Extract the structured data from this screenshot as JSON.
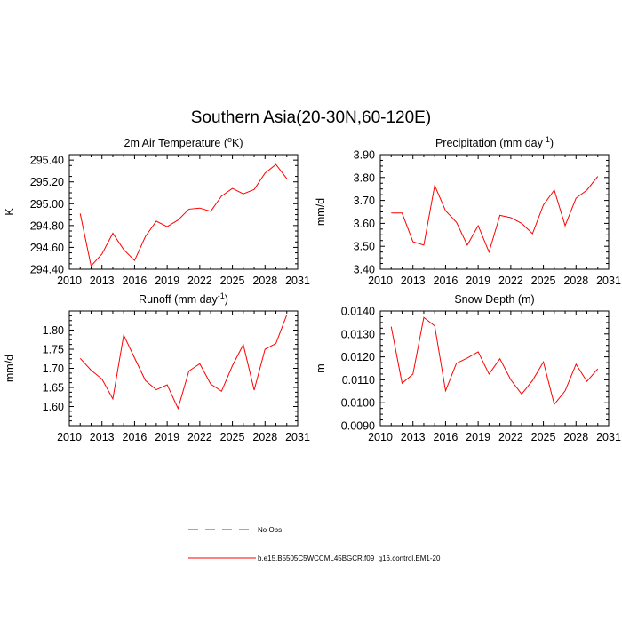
{
  "figure_title": "Southern Asia(20-30N,60-120E)",
  "colors": {
    "model_line": "#ff0000",
    "obs_line": "#3b3bff",
    "axis": "#000000"
  },
  "legend": {
    "obs_label": "No Obs",
    "model_label": "b.e15.B5505C5WCCML45BGCR.f09_g16.control.EM1-20"
  },
  "chart_data": [
    {
      "type": "line",
      "title_main": "2m Air Temperature (",
      "title_sup": "o",
      "title_end": "K)",
      "ylabel": "K",
      "xlim": [
        2010,
        2031
      ],
      "ylim": [
        294.4,
        295.45
      ],
      "xticks": [
        2010,
        2013,
        2016,
        2019,
        2022,
        2025,
        2028,
        2031
      ],
      "yticks": [
        294.4,
        294.6,
        294.8,
        295.0,
        295.2,
        295.4
      ],
      "ytick_labels": [
        "294.40",
        "294.60",
        "294.80",
        "295.00",
        "295.20",
        "295.40"
      ],
      "x": [
        2011,
        2012,
        2013,
        2014,
        2015,
        2016,
        2017,
        2018,
        2019,
        2020,
        2021,
        2022,
        2023,
        2024,
        2025,
        2026,
        2027,
        2028,
        2029,
        2030
      ],
      "series": [
        {
          "name": "b.e15.B5505C5WCCML45BGCR.f09_g16.control.EM1-20",
          "values": [
            294.91,
            294.43,
            294.54,
            294.73,
            294.58,
            294.48,
            294.7,
            294.84,
            294.79,
            294.85,
            294.95,
            294.96,
            294.93,
            295.07,
            295.14,
            295.09,
            295.13,
            295.28,
            295.36,
            295.23
          ]
        }
      ]
    },
    {
      "type": "line",
      "title_main": "Precipitation (mm day",
      "title_sup": "-1",
      "title_end": ")",
      "ylabel": "mm/d",
      "xlim": [
        2010,
        2031
      ],
      "ylim": [
        3.4,
        3.9
      ],
      "xticks": [
        2010,
        2013,
        2016,
        2019,
        2022,
        2025,
        2028,
        2031
      ],
      "yticks": [
        3.4,
        3.5,
        3.6,
        3.7,
        3.8,
        3.9
      ],
      "ytick_labels": [
        "3.40",
        "3.50",
        "3.60",
        "3.70",
        "3.80",
        "3.90"
      ],
      "x": [
        2011,
        2012,
        2013,
        2014,
        2015,
        2016,
        2017,
        2018,
        2019,
        2020,
        2021,
        2022,
        2023,
        2024,
        2025,
        2026,
        2027,
        2028,
        2029,
        2030
      ],
      "series": [
        {
          "name": "b.e15.B5505C5WCCML45BGCR.f09_g16.control.EM1-20",
          "values": [
            3.645,
            3.645,
            3.52,
            3.505,
            3.765,
            3.655,
            3.605,
            3.505,
            3.59,
            3.475,
            3.635,
            3.625,
            3.6,
            3.555,
            3.68,
            3.745,
            3.59,
            3.71,
            3.745,
            3.805
          ]
        }
      ]
    },
    {
      "type": "line",
      "title_main": "Runoff (mm day",
      "title_sup": "-1",
      "title_end": ")",
      "ylabel": "mm/d",
      "xlim": [
        2010,
        2031
      ],
      "ylim": [
        1.55,
        1.85
      ],
      "xticks": [
        2010,
        2013,
        2016,
        2019,
        2022,
        2025,
        2028,
        2031
      ],
      "yticks": [
        1.6,
        1.65,
        1.7,
        1.75,
        1.8
      ],
      "ytick_labels": [
        "1.60",
        "1.65",
        "1.70",
        "1.75",
        "1.80"
      ],
      "x": [
        2011,
        2012,
        2013,
        2014,
        2015,
        2016,
        2017,
        2018,
        2019,
        2020,
        2021,
        2022,
        2023,
        2024,
        2025,
        2026,
        2027,
        2028,
        2029,
        2030
      ],
      "series": [
        {
          "name": "b.e15.B5505C5WCCML45BGCR.f09_g16.control.EM1-20",
          "values": [
            1.726,
            1.695,
            1.672,
            1.62,
            1.787,
            1.727,
            1.668,
            1.644,
            1.657,
            1.595,
            1.693,
            1.712,
            1.659,
            1.64,
            1.707,
            1.762,
            1.643,
            1.75,
            1.765,
            1.84
          ]
        }
      ]
    },
    {
      "type": "line",
      "title_main": "Snow Depth (m)",
      "title_sup": "",
      "title_end": "",
      "ylabel": "m",
      "xlim": [
        2010,
        2031
      ],
      "ylim": [
        0.009,
        0.014
      ],
      "xticks": [
        2010,
        2013,
        2016,
        2019,
        2022,
        2025,
        2028,
        2031
      ],
      "yticks": [
        0.009,
        0.01,
        0.011,
        0.012,
        0.013,
        0.014
      ],
      "ytick_labels": [
        "0.0090",
        "0.0100",
        "0.0110",
        "0.0120",
        "0.0130",
        "0.0140"
      ],
      "x": [
        2011,
        2012,
        2013,
        2014,
        2015,
        2016,
        2017,
        2018,
        2019,
        2020,
        2021,
        2022,
        2023,
        2024,
        2025,
        2026,
        2027,
        2028,
        2029,
        2030
      ],
      "series": [
        {
          "name": "b.e15.B5505C5WCCML45BGCR.f09_g16.control.EM1-20",
          "values": [
            0.01332,
            0.01085,
            0.01125,
            0.01372,
            0.01335,
            0.01052,
            0.01172,
            0.01195,
            0.01222,
            0.01125,
            0.01192,
            0.011,
            0.01038,
            0.01097,
            0.01178,
            0.00993,
            0.01052,
            0.01168,
            0.01093,
            0.01148
          ]
        }
      ]
    }
  ]
}
